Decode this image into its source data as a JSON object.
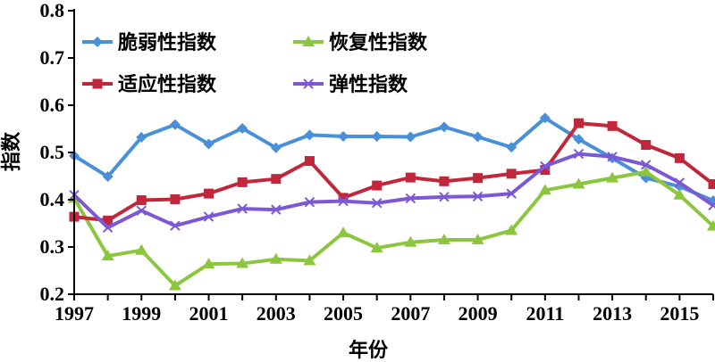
{
  "chart_data": {
    "type": "line",
    "title": "",
    "xlabel": "年份",
    "ylabel": "指数",
    "x": [
      1997,
      1998,
      1999,
      2000,
      2001,
      2002,
      2003,
      2004,
      2005,
      2006,
      2007,
      2008,
      2009,
      2010,
      2011,
      2012,
      2013,
      2014,
      2015,
      2016
    ],
    "xticks": [
      "1997",
      "1999",
      "2001",
      "2003",
      "2005",
      "2007",
      "2009",
      "2011",
      "2013",
      "2015"
    ],
    "ylim": [
      0.2,
      0.8
    ],
    "yticks": [
      "0.2",
      "0.3",
      "0.4",
      "0.5",
      "0.6",
      "0.7",
      "0.8"
    ],
    "grid": false,
    "legend_position": "top-left",
    "series": [
      {
        "name": "脆弱性指数",
        "color": "#4a90d9",
        "marker": "diamond",
        "values": [
          0.493,
          0.449,
          0.532,
          0.559,
          0.518,
          0.551,
          0.51,
          0.537,
          0.534,
          0.534,
          0.533,
          0.554,
          0.533,
          0.511,
          0.573,
          0.528,
          0.488,
          0.446,
          0.428,
          0.398
        ]
      },
      {
        "name": "恢复性指数",
        "color": "#8cc63f",
        "marker": "triangle",
        "values": [
          0.403,
          0.281,
          0.293,
          0.218,
          0.264,
          0.265,
          0.274,
          0.271,
          0.33,
          0.298,
          0.31,
          0.315,
          0.315,
          0.335,
          0.42,
          0.433,
          0.446,
          0.459,
          0.41,
          0.344
        ]
      },
      {
        "name": "适应性指数",
        "color": "#c1273a",
        "marker": "square",
        "values": [
          0.364,
          0.356,
          0.399,
          0.401,
          0.413,
          0.437,
          0.444,
          0.482,
          0.404,
          0.43,
          0.447,
          0.439,
          0.446,
          0.455,
          0.463,
          0.562,
          0.556,
          0.516,
          0.488,
          0.433
        ]
      },
      {
        "name": "弹性指数",
        "color": "#7b58d6",
        "marker": "x",
        "values": [
          0.41,
          0.341,
          0.377,
          0.345,
          0.364,
          0.381,
          0.379,
          0.395,
          0.397,
          0.393,
          0.403,
          0.406,
          0.407,
          0.413,
          0.471,
          0.497,
          0.491,
          0.474,
          0.436,
          0.388
        ]
      }
    ]
  }
}
